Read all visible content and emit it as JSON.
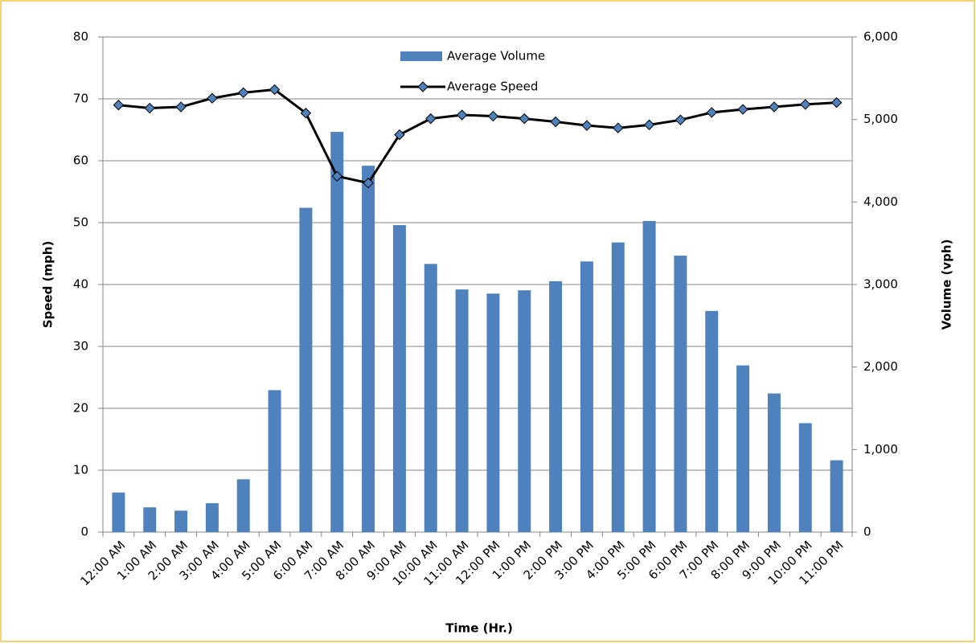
{
  "chart_data": {
    "type": "bar-line",
    "x_label": "Time (Hr.)",
    "y_label": "Speed (mph)",
    "y2_label": "Volume (vph)",
    "categories": [
      "12:00 AM",
      "1:00 AM",
      "2:00 AM",
      "3:00 AM",
      "4:00 AM",
      "5:00 AM",
      "6:00 AM",
      "7:00 AM",
      "8:00 AM",
      "9:00 AM",
      "10:00 AM",
      "11:00 AM",
      "12:00 PM",
      "1:00 PM",
      "2:00 PM",
      "3:00 PM",
      "4:00 PM",
      "5:00 PM",
      "6:00 PM",
      "7:00 PM",
      "8:00 PM",
      "9:00 PM",
      "10:00 PM",
      "11:00 PM"
    ],
    "series": [
      {
        "name": "Average Volume",
        "type": "bar",
        "axis": "y2",
        "color": "#4f81bd",
        "values": [
          480,
          300,
          260,
          350,
          640,
          1720,
          3930,
          4850,
          4440,
          3720,
          3250,
          2940,
          2890,
          2930,
          3040,
          3280,
          3510,
          3770,
          3350,
          2680,
          2020,
          1680,
          1320,
          870
        ]
      },
      {
        "name": "Average Speed",
        "type": "line",
        "axis": "y",
        "color": "#000000",
        "values": [
          69,
          68.5,
          68.7,
          70.1,
          71,
          71.5,
          67.7,
          57.5,
          56.4,
          64.2,
          66.8,
          67.4,
          67.2,
          66.8,
          66.3,
          65.7,
          65.3,
          65.8,
          66.6,
          67.8,
          68.3,
          68.7,
          69.1,
          69.4
        ]
      }
    ],
    "ylim": [
      0,
      80
    ],
    "yticks": [
      0,
      10,
      20,
      30,
      40,
      50,
      60,
      70,
      80
    ],
    "y2lim": [
      0,
      6000
    ],
    "y2ticks": [
      0,
      {
        "value": 1000,
        "label": "1,000"
      },
      {
        "value": 2000,
        "label": "2,000"
      },
      {
        "value": 3000,
        "label": "3,000"
      },
      {
        "value": 4000,
        "label": "4,000"
      },
      {
        "value": 5000,
        "label": "5,000"
      },
      {
        "value": 6000,
        "label": "6,000"
      }
    ],
    "grid": true
  }
}
